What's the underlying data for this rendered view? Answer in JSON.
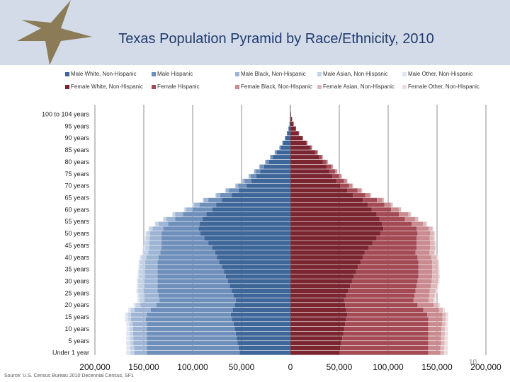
{
  "slide": {
    "title": "Texas Population Pyramid by Race/Ethnicity, 2010",
    "source": "Source: U.S. Census Bureau 2010 Decennial Census, SF1",
    "slide_number": "10",
    "colors": {
      "header_band": "#d4dbe8",
      "star": "#8b7b56",
      "title": "#1f3b6e"
    }
  },
  "chart_data": {
    "type": "bar",
    "orientation": "horizontal-stacked-pyramid",
    "title": "Texas Population Pyramid by Race/Ethnicity, 2010",
    "xlim": [
      -200000,
      200000
    ],
    "x_ticks": [
      -200000,
      -150000,
      -100000,
      -50000,
      0,
      50000,
      100000,
      150000,
      200000
    ],
    "x_tick_labels": [
      "200,000",
      "150,000",
      "100,000",
      "50,000",
      "0",
      "50,000",
      "100,000",
      "150,000",
      "200,000"
    ],
    "y_tick_labels": [
      "100 to 104 years",
      "95 years",
      "90 years",
      "85 years",
      "80 years",
      "75 years",
      "70 years",
      "65 years",
      "60 years",
      "55 years",
      "50 years",
      "45 years",
      "40 years",
      "35 years",
      "30 years",
      "25 years",
      "20 years",
      "15 years",
      "10 years",
      "5 years",
      "Under 1 year"
    ],
    "y_tick_ages": [
      100,
      95,
      90,
      85,
      80,
      75,
      70,
      65,
      60,
      55,
      50,
      45,
      40,
      35,
      30,
      25,
      20,
      15,
      10,
      5,
      0
    ],
    "grid": true,
    "legend_position": "top",
    "ages": [
      0,
      2,
      4,
      6,
      8,
      10,
      12,
      14,
      16,
      18,
      20,
      22,
      24,
      26,
      28,
      30,
      32,
      34,
      36,
      38,
      40,
      42,
      44,
      46,
      48,
      50,
      52,
      54,
      56,
      58,
      60,
      62,
      64,
      66,
      68,
      70,
      72,
      74,
      76,
      78,
      80,
      82,
      84,
      86,
      88,
      90,
      92,
      94,
      96,
      98,
      100
    ],
    "series": [
      {
        "name": "Male White, Non-Hispanic",
        "side": "male",
        "color": "#3e6699",
        "values": [
          -52000,
          -53000,
          -54000,
          -55000,
          -56000,
          -57000,
          -58000,
          -60000,
          -61000,
          -59000,
          -57000,
          -56000,
          -58000,
          -60000,
          -62000,
          -64000,
          -66000,
          -68000,
          -70000,
          -73000,
          -75000,
          -77000,
          -80000,
          -84000,
          -88000,
          -92000,
          -94000,
          -93000,
          -90000,
          -86000,
          -80000,
          -76000,
          -70000,
          -60000,
          -53000,
          -45000,
          -40000,
          -35000,
          -31000,
          -27000,
          -22000,
          -18000,
          -14000,
          -10000,
          -7500,
          -5200,
          -3300,
          -1900,
          -1000,
          -450,
          -150
        ]
      },
      {
        "name": "Male Hispanic",
        "side": "male",
        "color": "#6f8fbb",
        "values": [
          -95000,
          -94000,
          -93000,
          -92000,
          -91000,
          -90000,
          -89000,
          -88000,
          -86000,
          -84000,
          -80000,
          -78000,
          -77000,
          -76000,
          -74000,
          -72000,
          -70000,
          -68000,
          -66000,
          -63000,
          -60000,
          -56000,
          -52000,
          -48000,
          -44000,
          -40000,
          -36000,
          -32000,
          -28000,
          -24000,
          -20000,
          -17000,
          -14000,
          -12000,
          -10000,
          -8500,
          -7000,
          -5800,
          -4800,
          -3800,
          -3000,
          -2200,
          -1600,
          -1100,
          -700,
          -450,
          -270,
          -150,
          -70,
          -30,
          -10
        ]
      },
      {
        "name": "Male Black, Non-Hispanic",
        "side": "male",
        "color": "#9db4d4",
        "values": [
          -13000,
          -13000,
          -13500,
          -13500,
          -14000,
          -14000,
          -14500,
          -15000,
          -16000,
          -16500,
          -16500,
          -15500,
          -14500,
          -14000,
          -13500,
          -13500,
          -13000,
          -13000,
          -12500,
          -12500,
          -12500,
          -12500,
          -12500,
          -12500,
          -12000,
          -11500,
          -11000,
          -10000,
          -9000,
          -8000,
          -6500,
          -5500,
          -4500,
          -3700,
          -3000,
          -2500,
          -2000,
          -1700,
          -1400,
          -1100,
          -900,
          -700,
          -500,
          -350,
          -230,
          -150,
          -90,
          -50,
          -25,
          -10,
          -4
        ]
      },
      {
        "name": "Male Asian, Non-Hispanic",
        "side": "male",
        "color": "#c3d2e6",
        "values": [
          -3800,
          -3800,
          -3800,
          -3800,
          -3600,
          -3500,
          -3400,
          -3400,
          -3600,
          -4000,
          -4800,
          -5200,
          -5500,
          -6000,
          -6200,
          -6300,
          -6200,
          -6000,
          -5800,
          -5500,
          -5200,
          -4800,
          -4500,
          -4200,
          -4000,
          -3800,
          -3500,
          -3200,
          -2800,
          -2400,
          -2000,
          -1600,
          -1300,
          -1000,
          -800,
          -650,
          -500,
          -400,
          -300,
          -220,
          -160,
          -110,
          -70,
          -45,
          -25,
          -15,
          -8,
          -4,
          -2,
          -1,
          0
        ]
      },
      {
        "name": "Male Other, Non-Hispanic",
        "side": "male",
        "color": "#dfe6f0",
        "values": [
          -4200,
          -4000,
          -3800,
          -3600,
          -3400,
          -3200,
          -3000,
          -2800,
          -2600,
          -2400,
          -2100,
          -1900,
          -1800,
          -1700,
          -1600,
          -1500,
          -1400,
          -1350,
          -1300,
          -1250,
          -1200,
          -1150,
          -1100,
          -1050,
          -1000,
          -950,
          -850,
          -750,
          -650,
          -550,
          -450,
          -380,
          -320,
          -260,
          -210,
          -170,
          -140,
          -110,
          -90,
          -70,
          -50,
          -35,
          -25,
          -15,
          -10,
          -6,
          -3,
          -2,
          -1,
          0,
          0
        ]
      },
      {
        "name": "Female White, Non-Hispanic",
        "side": "female",
        "color": "#7a2530",
        "values": [
          50000,
          51000,
          52000,
          53000,
          54000,
          55000,
          56000,
          57000,
          58000,
          57000,
          56000,
          55000,
          57000,
          59000,
          61000,
          63000,
          65000,
          67000,
          69000,
          72000,
          74000,
          76000,
          80000,
          84000,
          88000,
          92000,
          95000,
          94000,
          91000,
          88000,
          83000,
          79000,
          74000,
          64000,
          58000,
          51000,
          47000,
          43000,
          40000,
          37000,
          33000,
          29000,
          25000,
          20000,
          16000,
          12000,
          8500,
          5500,
          3200,
          1700,
          700
        ]
      },
      {
        "name": "Female Hispanic",
        "side": "female",
        "color": "#a34a55",
        "values": [
          91000,
          90000,
          89000,
          88000,
          87000,
          86000,
          85000,
          84000,
          82000,
          79000,
          74000,
          71000,
          70000,
          69000,
          68000,
          67000,
          66000,
          64000,
          62000,
          59000,
          56000,
          52000,
          49000,
          45000,
          41000,
          38000,
          34000,
          30000,
          26000,
          23000,
          20000,
          17000,
          14500,
          12500,
          10500,
          9000,
          7800,
          6700,
          5700,
          4700,
          3800,
          3000,
          2300,
          1600,
          1100,
          700,
          420,
          240,
          120,
          55,
          20
        ]
      },
      {
        "name": "Female Black, Non-Hispanic",
        "side": "female",
        "color": "#c98a90",
        "values": [
          12500,
          12500,
          13000,
          13000,
          13500,
          13500,
          14000,
          14500,
          15500,
          16000,
          16500,
          15500,
          15000,
          14500,
          14500,
          14500,
          14000,
          14000,
          14000,
          14000,
          14000,
          14000,
          14000,
          14000,
          13500,
          13000,
          12500,
          11500,
          10500,
          9300,
          7800,
          6700,
          5600,
          4700,
          3900,
          3300,
          2800,
          2400,
          2000,
          1700,
          1400,
          1100,
          850,
          620,
          430,
          280,
          170,
          100,
          55,
          25,
          10
        ]
      },
      {
        "name": "Female Asian, Non-Hispanic",
        "side": "female",
        "color": "#ddb7ba",
        "values": [
          3700,
          3700,
          3700,
          3700,
          3500,
          3400,
          3300,
          3300,
          3500,
          3900,
          4700,
          5100,
          5500,
          6100,
          6400,
          6500,
          6400,
          6200,
          6000,
          5800,
          5600,
          5300,
          5000,
          4700,
          4400,
          4200,
          3900,
          3500,
          3100,
          2700,
          2300,
          1900,
          1600,
          1300,
          1050,
          850,
          680,
          540,
          420,
          320,
          240,
          170,
          110,
          70,
          42,
          25,
          14,
          7,
          3,
          1,
          0
        ]
      },
      {
        "name": "Female Other, Non-Hispanic",
        "side": "female",
        "color": "#efdcdd",
        "values": [
          4000,
          3800,
          3600,
          3400,
          3200,
          3000,
          2800,
          2600,
          2500,
          2300,
          2000,
          1850,
          1750,
          1700,
          1600,
          1500,
          1450,
          1400,
          1350,
          1300,
          1250,
          1200,
          1150,
          1100,
          1050,
          1000,
          900,
          800,
          700,
          600,
          500,
          420,
          350,
          290,
          240,
          200,
          160,
          130,
          100,
          80,
          60,
          45,
          30,
          20,
          12,
          7,
          4,
          2,
          1,
          0,
          0
        ]
      }
    ]
  }
}
